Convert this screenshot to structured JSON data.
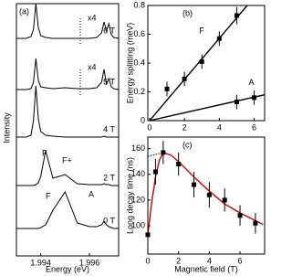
{
  "chart_data": [
    {
      "type": "spectra",
      "panel_label": "(a)",
      "x_label": "Energy (eV)",
      "y_label": "Intensity",
      "xlim": [
        1.993,
        1.9972
      ],
      "xticks": [
        1.994,
        1.996
      ],
      "x": [
        1.993,
        1.9934,
        1.9936,
        1.9937,
        1.9938,
        1.9939,
        1.994,
        1.9942,
        1.9945,
        1.995,
        1.9955,
        1.996,
        1.9963,
        1.9965,
        1.9966,
        1.9967,
        1.9968,
        1.9969,
        1.997,
        1.9972
      ],
      "series": [
        {
          "name": "6 T",
          "color": "#000",
          "values": [
            2,
            2,
            4,
            12,
            40,
            14,
            5,
            3,
            2,
            2,
            2,
            2,
            3,
            8,
            20,
            10,
            18,
            6,
            3,
            2
          ]
        },
        {
          "name": "5 T",
          "color": "#000",
          "values": [
            2,
            2,
            3,
            10,
            36,
            12,
            5,
            4,
            3,
            4,
            3,
            3,
            4,
            10,
            24,
            8,
            14,
            5,
            3,
            2
          ]
        },
        {
          "name": "4 T",
          "color": "#000",
          "values": [
            2,
            2,
            4,
            20,
            58,
            22,
            8,
            4,
            3,
            2,
            2,
            2,
            2,
            2,
            3,
            2,
            2,
            2,
            2,
            2
          ]
        },
        {
          "name": "2 T",
          "color": "#000",
          "values": [
            2,
            2,
            2,
            2,
            3,
            5,
            12,
            40,
            10,
            14,
            4,
            3,
            3,
            3,
            4,
            3,
            3,
            2,
            2,
            2
          ]
        },
        {
          "name": "0 T",
          "color": "#000",
          "values": [
            2,
            2,
            2,
            2,
            2,
            2,
            3,
            6,
            22,
            42,
            8,
            4,
            4,
            6,
            10,
            6,
            4,
            3,
            2,
            2
          ]
        }
      ],
      "annotations": [
        "x4",
        "x4",
        "F",
        "F+",
        "F",
        "A"
      ]
    },
    {
      "type": "scatter_fit",
      "panel_label": "(b)",
      "y_label": "Energy splitting (meV)",
      "xlim": [
        -0.1,
        6.6
      ],
      "ylim": [
        0,
        0.8
      ],
      "xticks": [
        0,
        2,
        4,
        6
      ],
      "yticks": [
        0,
        0.2,
        0.4,
        0.6,
        0.8
      ],
      "series": [
        {
          "name": "F",
          "color": "#000",
          "x": [
            1,
            2,
            3,
            4,
            5
          ],
          "values": [
            0.22,
            0.29,
            0.41,
            0.57,
            0.73
          ],
          "errors": [
            0.05,
            0.05,
            0.05,
            0.05,
            0.06
          ]
        },
        {
          "name": "A",
          "color": "#000",
          "x": [
            5,
            6
          ],
          "values": [
            0.13,
            0.16
          ],
          "errors": [
            0.05,
            0.05
          ]
        }
      ],
      "fits": [
        {
          "color": "#000",
          "x": [
            0,
            5.6
          ],
          "values": [
            0,
            0.8
          ]
        },
        {
          "color": "#000",
          "x": [
            0,
            6.6
          ],
          "values": [
            0,
            0.18
          ]
        }
      ]
    },
    {
      "type": "scatter_fit",
      "panel_label": "(c)",
      "x_label": "Magnetic field (T)",
      "y_label": "Long decay time (ns)",
      "xlim": [
        0,
        7.6
      ],
      "ylim": [
        78,
        169
      ],
      "xticks": [
        0,
        2,
        4,
        6
      ],
      "yticks": [
        100,
        120,
        140,
        160
      ],
      "series": [
        {
          "color": "#000",
          "x": [
            0,
            0.5,
            1,
            2,
            3,
            4,
            5,
            6,
            7
          ],
          "values": [
            93,
            142,
            157,
            148,
            132,
            124,
            120,
            108,
            102
          ],
          "errors": [
            8,
            10,
            9,
            9,
            10,
            10,
            9,
            8,
            8
          ]
        }
      ],
      "fits": [
        {
          "color": "#d00000",
          "x": [
            0,
            0.25,
            0.5,
            0.75,
            1,
            1.5,
            2,
            3,
            4,
            5,
            6,
            7,
            7.5
          ],
          "values": [
            93,
            118,
            138,
            151,
            157,
            155,
            150,
            138,
            127,
            117,
            110,
            104,
            101
          ]
        },
        {
          "color": "#000",
          "dash": true,
          "x": [
            0,
            1
          ],
          "values": [
            154,
            157
          ]
        }
      ]
    }
  ]
}
